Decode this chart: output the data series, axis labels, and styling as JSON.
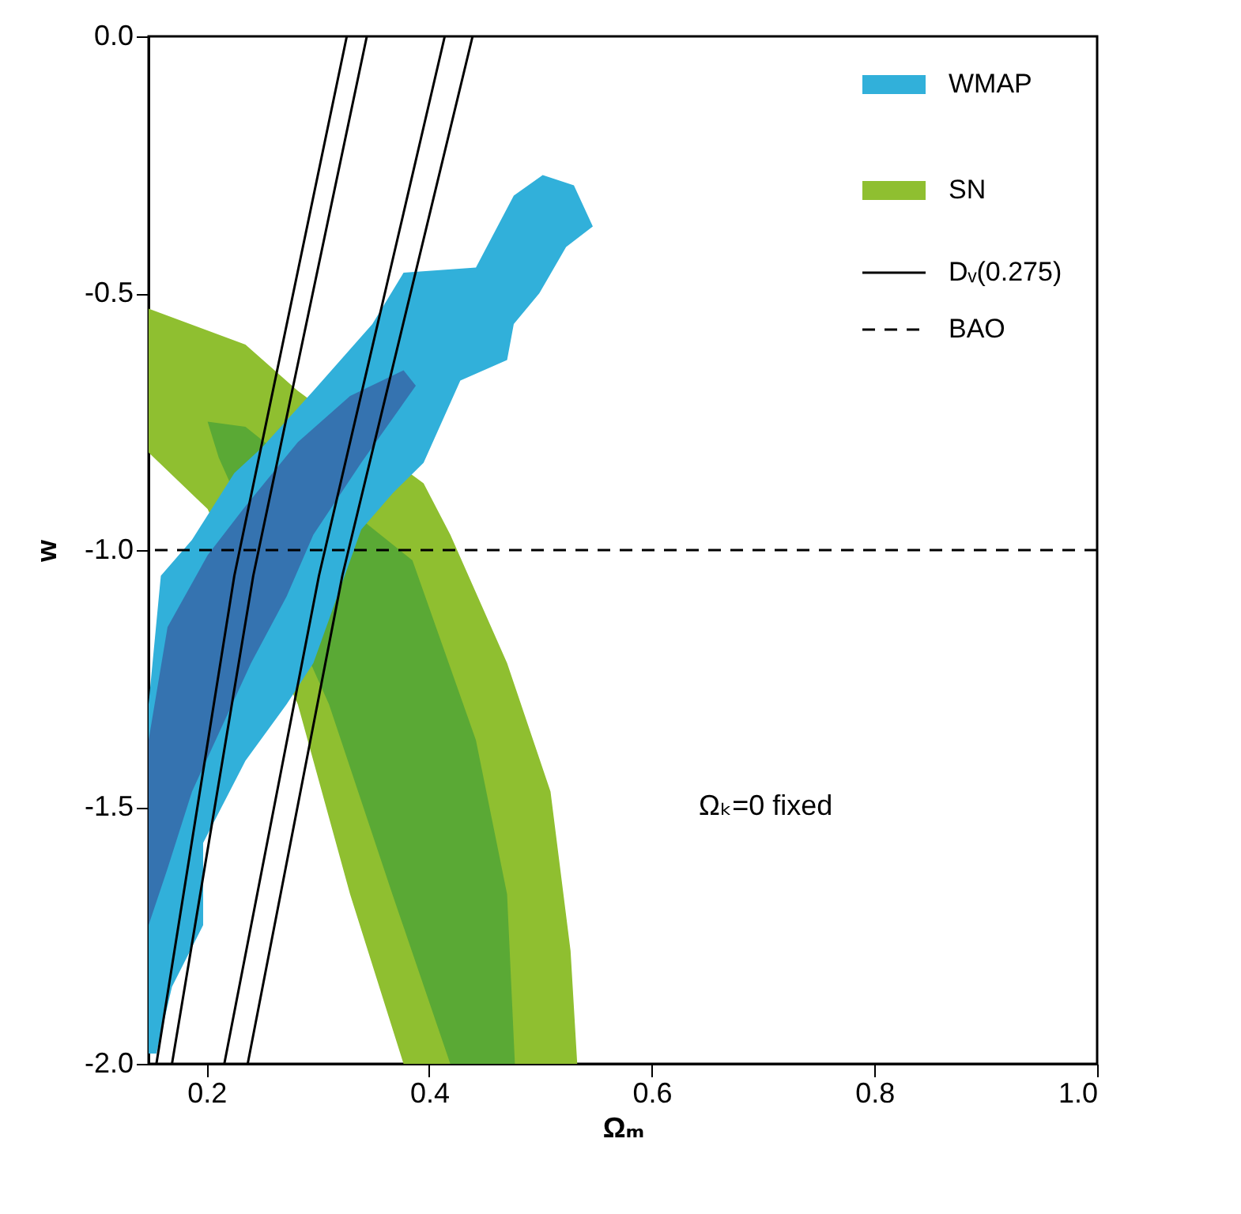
{
  "chart_data": {
    "type": "area",
    "xlabel": "Ωₘ",
    "ylabel": "w",
    "annotations": [
      "Ωₖ=0 fixed"
    ],
    "xlim": [
      0.148,
      1.0
    ],
    "ylim": [
      -2.0,
      0.0
    ],
    "xticks": [
      0.2,
      0.4,
      0.6,
      0.8,
      {
        "value": 1.0,
        "label": "1.0"
      }
    ],
    "yticks": [
      {
        "value": 0,
        "label": "0.0"
      },
      {
        "value": -0.5,
        "label": "-0.5"
      },
      {
        "value": -1.0,
        "label": "-1.0"
      },
      {
        "value": -1.5,
        "label": "-1.5"
      },
      {
        "value": -2.0,
        "label": "-2.0"
      }
    ],
    "grid": false,
    "legend": "top right",
    "series": [
      {
        "color": "#31b0da",
        "name": "WMAP",
        "x": [
          0.148,
          0.159,
          0.187,
          0.225,
          0.25,
          0.296,
          0.349,
          0.377,
          0.442,
          0.476,
          0.502,
          0.53,
          0.547,
          0.523,
          0.499,
          0.476,
          0.47,
          0.428,
          0.395,
          0.367,
          0.339,
          0.296,
          0.272,
          0.235,
          0.197,
          0.197,
          0.169,
          0.155,
          0.148
        ],
        "values": [
          -1.3,
          -1.05,
          -0.98,
          -0.85,
          -0.8,
          -0.69,
          -0.56,
          -0.46,
          -0.45,
          -0.31,
          -0.27,
          -0.29,
          -0.37,
          -0.41,
          -0.5,
          -0.56,
          -0.63,
          -0.67,
          -0.83,
          -0.89,
          -0.96,
          -1.22,
          -1.3,
          -1.41,
          -1.57,
          -1.73,
          -1.85,
          -1.98,
          -1.98
        ]
      },
      {
        "color": "#3573b0",
        "x": [
          0.148,
          0.148,
          0.165,
          0.201,
          0.233,
          0.282,
          0.329,
          0.377,
          0.388,
          0.339,
          0.296,
          0.272,
          0.24,
          0.187,
          0.165,
          0.148
        ],
        "values": [
          -1.73,
          -1.37,
          -1.15,
          -1.01,
          -0.92,
          -0.79,
          -0.7,
          -0.65,
          -0.68,
          -0.83,
          -0.97,
          -1.09,
          -1.22,
          -1.47,
          -1.62,
          -1.73
        ]
      },
      {
        "color": "#8fbf30",
        "name": "SN",
        "x": [
          0.148,
          0.235,
          0.282,
          0.395,
          0.419,
          0.47,
          0.509,
          0.527,
          0.533,
          0.377,
          0.329,
          0.282,
          0.201,
          0.148
        ],
        "values": [
          -0.53,
          -0.6,
          -0.69,
          -0.87,
          -0.97,
          -1.22,
          -1.47,
          -1.78,
          -2.0,
          -2.0,
          -1.67,
          -1.3,
          -0.92,
          -0.81
        ]
      },
      {
        "color": "#5aa935",
        "x": [
          0.201,
          0.235,
          0.385,
          0.442,
          0.47,
          0.477,
          0.419,
          0.367,
          0.31,
          0.211
        ],
        "values": [
          -0.75,
          -0.76,
          -1.02,
          -1.37,
          -1.67,
          -2.0,
          -2.0,
          -1.67,
          -1.3,
          -0.82
        ]
      },
      {
        "type": "line",
        "color": "#000000",
        "name": "Dᵥ(0.275)",
        "x": [
          0.326,
          0.225,
          0.155
        ],
        "values": [
          0.0,
          -1.05,
          -2.0
        ]
      },
      {
        "type": "line",
        "color": "#000000",
        "x": [
          0.344,
          0.242,
          0.169
        ],
        "values": [
          0.0,
          -1.05,
          -2.0
        ]
      },
      {
        "type": "line",
        "color": "#000000",
        "x": [
          0.414,
          0.301,
          0.216
        ],
        "values": [
          0.0,
          -1.05,
          -2.0
        ]
      },
      {
        "type": "line",
        "color": "#000000",
        "x": [
          0.439,
          0.322,
          0.237
        ],
        "values": [
          0.0,
          -1.05,
          -2.0
        ]
      }
    ],
    "ref_lines": [
      {
        "axis": "y",
        "value": -1.0,
        "label": "BAO",
        "line_style": "dashed",
        "color": "#000000"
      }
    ]
  }
}
